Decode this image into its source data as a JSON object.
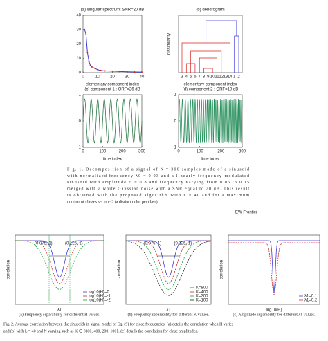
{
  "figure1": {
    "panels": [
      {
        "title": "(a) singular spectrum: SNR=20 dB",
        "xlabel": "elementary component index",
        "x": [
          1,
          2,
          3,
          4,
          5,
          6,
          8,
          10,
          12,
          15,
          20,
          25,
          30,
          35,
          40
        ],
        "values": [
          30,
          27,
          14,
          8,
          5,
          4,
          3,
          2,
          1.5,
          1.2,
          1,
          0.8,
          0.6,
          0.5,
          0.4
        ],
        "xlim": [
          0,
          40
        ],
        "xticks": [
          0,
          10,
          20,
          30,
          40
        ],
        "ylim": [
          0,
          40
        ],
        "yticks": [
          0,
          10,
          20,
          30,
          40
        ],
        "color": "#3a3ad6",
        "marker_color": "#d62020"
      },
      {
        "title": "(b) dendrogram",
        "xlabel": "elementary component index",
        "ylabel": "dissimilarity",
        "leaves": [
          "3",
          "4",
          "5",
          "6",
          "7",
          "8",
          "9",
          "10",
          "11",
          "12",
          "13",
          "14",
          "1",
          "2"
        ]
      },
      {
        "title": "(c) component 1 : QRF=26 dB",
        "xlabel": "time index",
        "xlim": [
          0,
          300
        ],
        "xticks": [
          0,
          100,
          200,
          300
        ],
        "ylim": [
          -1,
          1
        ],
        "yticks": [
          -1,
          0,
          1
        ]
      },
      {
        "title": "(d) component 2 : QRF=19 dB",
        "xlabel": "time index",
        "xlim": [
          0,
          300
        ],
        "xticks": [
          0,
          100,
          200,
          300
        ],
        "ylim": [
          -1,
          1
        ],
        "yticks": [
          -1,
          0,
          1
        ]
      }
    ],
    "caption": [
      "Fig. 1.   Decomposition of a signal of N = 300 samples made of a sinusoid",
      "with normalized frequency λ0 = 0.03 and a linearly frequency-modulated",
      "sinusoid with amplitude H = 0.8 and frequency varying from 0.06 to 0.15",
      "merged with a white Gaussian noise with a SNR equal to 20 dB. This result",
      "is obtained with the proposed algorithm with L = 40 and for a maximum",
      "number of classes set to r=2 (a distinct color per class)."
    ]
  },
  "watermark": "EW Frontier",
  "figure2": {
    "panels": [
      {
        "subcaption": "(a) Frequency separability for different H values.",
        "ylabel": "correlation",
        "xlabel": "λ1",
        "annotations": [
          "(0.075, 1)",
          "(0.125, 1)"
        ],
        "legend": [
          "log10(H)=0",
          "log10(H)=-1",
          "log10(H)=-2"
        ]
      },
      {
        "subcaption": "(b) Frequency separability for different K values.",
        "ylabel": "correlation",
        "xlabel": "λ1",
        "annotations": [
          "(0.075, 1)",
          "(0.125, 1)"
        ],
        "legend": [
          "K=800",
          "K=400",
          "K=200",
          "K=100"
        ]
      },
      {
        "subcaption": "(c) Amplitude separability for different λ1 values.",
        "ylabel": "correlation",
        "xlabel": "log10(H)",
        "annotations": [],
        "legend": [
          "λ1=0.1",
          "λ1=0.2"
        ]
      }
    ],
    "caption": [
      "Fig. 2.  Average correlation between the sinusoids in signal model of Eq. (9) for close frequencies. (a) details the correlation when H varies",
      "and (b) with L = 40 and N varying such as K ∈ {800, 400, 200, 100}. (c) details the correlation for close amplitudes."
    ]
  }
}
